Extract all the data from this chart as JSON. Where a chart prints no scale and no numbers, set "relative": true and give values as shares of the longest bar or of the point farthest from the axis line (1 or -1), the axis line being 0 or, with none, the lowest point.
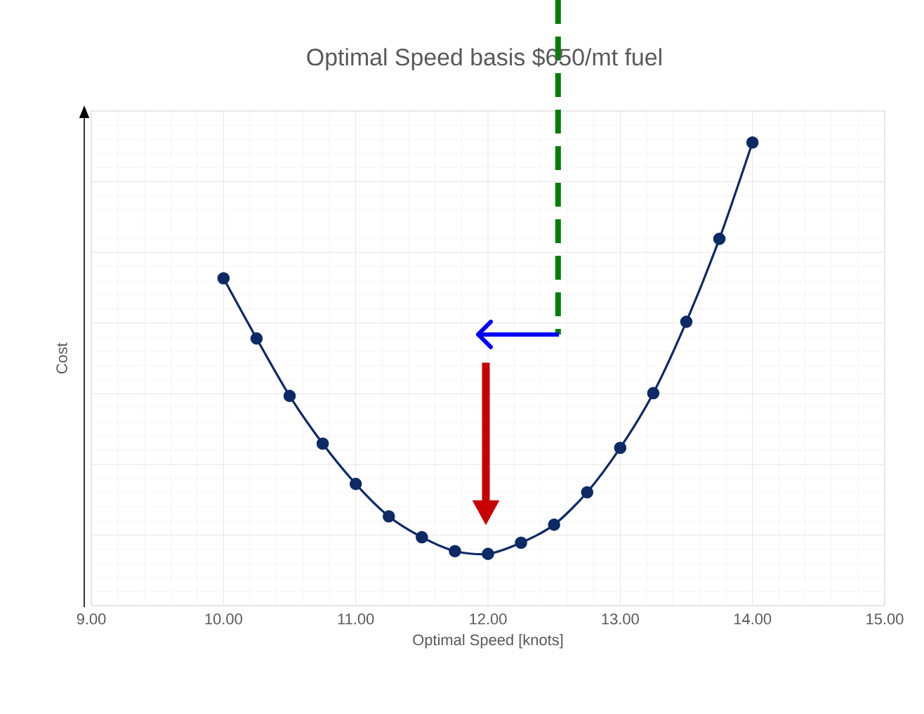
{
  "chart_data": {
    "type": "line",
    "title": "Optimal Speed basis $650/mt fuel",
    "xlabel": "Optimal Speed [knots]",
    "ylabel": "Cost",
    "relative": true,
    "x": [
      10,
      10.25,
      10.5,
      10.75,
      11,
      11.25,
      11.5,
      11.75,
      12,
      12.25,
      12.5,
      12.75,
      13,
      13.25,
      13.5,
      13.75,
      14
    ],
    "series": [
      {
        "color": "#0d2a66",
        "values": [
          0.707,
          0.577,
          0.453,
          0.35,
          0.263,
          0.193,
          0.148,
          0.118,
          0.112,
          0.136,
          0.175,
          0.245,
          0.341,
          0.459,
          0.613,
          0.792,
          1
        ]
      }
    ],
    "xlim": [
      9,
      15
    ],
    "xticks": [
      {
        "value": 9,
        "label": "9.00"
      },
      {
        "value": 10,
        "label": "10.00"
      },
      {
        "value": 11,
        "label": "11.00"
      },
      {
        "value": 12,
        "label": "12.00"
      },
      {
        "value": 13,
        "label": "13.00"
      },
      {
        "value": 14,
        "label": "14.00"
      },
      {
        "value": 15,
        "label": "15.00"
      }
    ],
    "ref_lines": [
      {
        "axis": "x",
        "value": 12.53,
        "color": "#008000",
        "line_style": "dashed"
      }
    ],
    "grid": true,
    "marker": "circle"
  }
}
